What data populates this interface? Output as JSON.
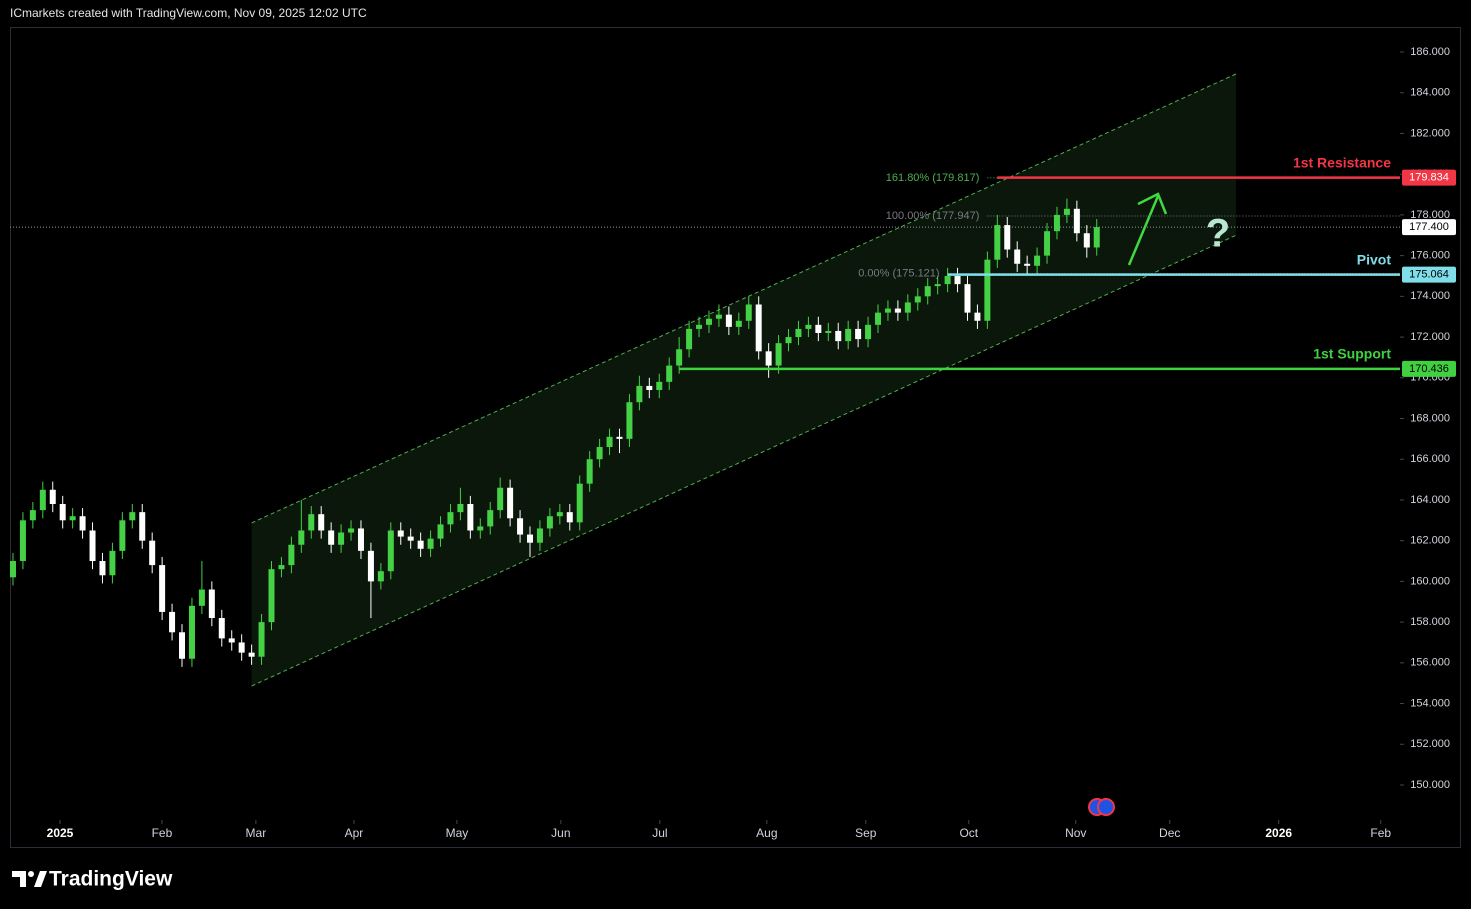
{
  "chart_data": {
    "type": "candlestick",
    "header": "ICmarkets created with TradingView.com, Nov 09, 2025 12:02 UTC",
    "brand": "TradingView",
    "ylim": [
      148.28,
      187.18
    ],
    "yticks": [
      {
        "value": 150,
        "label": "150.000"
      },
      {
        "value": 152,
        "label": "152.000"
      },
      {
        "value": 154,
        "label": "154.000"
      },
      {
        "value": 156,
        "label": "156.000"
      },
      {
        "value": 158,
        "label": "158.000"
      },
      {
        "value": 160,
        "label": "160.000"
      },
      {
        "value": 162,
        "label": "162.000"
      },
      {
        "value": 164,
        "label": "164.000"
      },
      {
        "value": 166,
        "label": "166.000"
      },
      {
        "value": 168,
        "label": "168.000"
      },
      {
        "value": 170,
        "label": "170.000"
      },
      {
        "value": 172,
        "label": "172.000"
      },
      {
        "value": 174,
        "label": "174.000"
      },
      {
        "value": 176,
        "label": "176.000"
      },
      {
        "value": 178,
        "label": "178.000"
      },
      {
        "value": 180,
        "label": "180.000"
      },
      {
        "value": 182,
        "label": "182.000"
      },
      {
        "value": 184,
        "label": "184.000"
      },
      {
        "value": 186,
        "label": "186.000"
      }
    ],
    "xlim": [
      -0.3,
      139.5
    ],
    "xticks": [
      {
        "value": 4.73,
        "label": "2025"
      },
      {
        "value": 14.98,
        "label": "Feb"
      },
      {
        "value": 24.43,
        "label": "Mar"
      },
      {
        "value": 34.29,
        "label": "Apr"
      },
      {
        "value": 44.65,
        "label": "May"
      },
      {
        "value": 55.1,
        "label": "Jun"
      },
      {
        "value": 65.06,
        "label": "Jul"
      },
      {
        "value": 75.82,
        "label": "Aug"
      },
      {
        "value": 85.77,
        "label": "Sep"
      },
      {
        "value": 96.13,
        "label": "Oct"
      },
      {
        "value": 106.89,
        "label": "Nov"
      },
      {
        "value": 116.34,
        "label": "Dec"
      },
      {
        "value": 127.3,
        "label": "2026"
      },
      {
        "value": 137.56,
        "label": "Feb"
      }
    ],
    "grid": false,
    "up_color": "#45d145",
    "down_color": "#ffffff",
    "candles": {
      "open": [
        160.2,
        161,
        163,
        163.5,
        164.5,
        163.8,
        163,
        163.2,
        162.5,
        161,
        160.3,
        161.5,
        163,
        163.4,
        162,
        160.8,
        158.5,
        157.5,
        156.2,
        158.8,
        159.6,
        158.2,
        157.2,
        157,
        156.5,
        156.3,
        158,
        160.6,
        160.8,
        161.8,
        162.5,
        163.3,
        162.5,
        161.8,
        162.4,
        162.6,
        161.5,
        160,
        160.5,
        162.5,
        162.2,
        162,
        161.6,
        162.1,
        162.8,
        163.4,
        163.8,
        162.5,
        162.7,
        163.5,
        164.6,
        163.1,
        162.3,
        161.9,
        162.6,
        163.2,
        163.4,
        162.9,
        164.8,
        166,
        166.6,
        167.1,
        167,
        168.8,
        169.6,
        169.4,
        169.8,
        170.6,
        171.4,
        172.4,
        172.6,
        172.9,
        173.1,
        172.5,
        172.8,
        173.6,
        171.3,
        170.6,
        171.7,
        172,
        172.4,
        172.6,
        172.2,
        172.3,
        171.8,
        172.4,
        171.9,
        172.6,
        173.2,
        173.4,
        173.2,
        173.7,
        174,
        174.5,
        174.6,
        175,
        174.6,
        173.2,
        172.8,
        175.8,
        177.5,
        176.3,
        175.6,
        175.5,
        176,
        177.2,
        178,
        178.3,
        177.1,
        176.4
      ],
      "high": [
        161.4,
        163.4,
        163.9,
        164.9,
        164.9,
        164.2,
        163.6,
        163.6,
        162.9,
        161.4,
        161.9,
        163.4,
        163.8,
        163.8,
        162.4,
        161.2,
        158.9,
        157.9,
        159.2,
        161,
        160,
        158.6,
        157.6,
        157.4,
        156.9,
        158.4,
        161,
        161.2,
        162.2,
        164,
        163.7,
        163.7,
        162.9,
        162.8,
        163,
        163,
        161.9,
        160.9,
        162.9,
        162.9,
        162.6,
        162.4,
        162.5,
        163.2,
        163.8,
        164.6,
        164.2,
        163.1,
        163.9,
        165.1,
        165,
        163.5,
        162.7,
        163,
        163.6,
        163.8,
        163.8,
        165.2,
        166.4,
        167,
        167.5,
        167.5,
        169.2,
        170.1,
        170,
        170.2,
        171,
        172,
        172.8,
        173,
        173.3,
        173.6,
        173.5,
        173.2,
        174,
        174,
        171.7,
        172.1,
        172.4,
        172.8,
        173,
        173,
        172.7,
        172.7,
        172.8,
        172.8,
        173,
        173.6,
        173.8,
        173.8,
        174.1,
        174.4,
        174.9,
        175,
        175.4,
        175.4,
        175,
        173.6,
        176.2,
        178,
        177.9,
        176.7,
        176,
        176.4,
        177.6,
        178.4,
        178.8,
        178.7,
        177.5,
        177.8
      ],
      "low": [
        159.8,
        160.6,
        162.6,
        163.1,
        163.4,
        162.6,
        162.6,
        162.1,
        160.6,
        159.9,
        159.9,
        161.1,
        162.6,
        161.6,
        160.4,
        158.1,
        157.1,
        155.8,
        155.8,
        158.4,
        157.8,
        156.8,
        156.6,
        156.1,
        155.9,
        155.9,
        157.6,
        160.2,
        160.4,
        161.4,
        162.1,
        162.1,
        161.4,
        161.4,
        162,
        161.1,
        158.2,
        159.6,
        160.1,
        161.8,
        161.6,
        161.2,
        161.2,
        161.7,
        162.4,
        163,
        162.1,
        162.1,
        162.3,
        163.1,
        162.7,
        161.9,
        161.2,
        161.5,
        162.2,
        162.8,
        162.5,
        162.5,
        164.4,
        165.6,
        166.2,
        166.3,
        166.6,
        168.4,
        169,
        169,
        169.4,
        170.2,
        171,
        172,
        172.2,
        172.5,
        172.1,
        172.1,
        172.4,
        170.9,
        170,
        170.2,
        171.3,
        171.6,
        172,
        171.8,
        171.8,
        171.4,
        171.4,
        171.5,
        171.5,
        172.2,
        172.8,
        172.8,
        172.8,
        173.3,
        173.6,
        174.1,
        174.2,
        174.2,
        172.8,
        172.4,
        172.4,
        175.4,
        175.9,
        175.2,
        175.1,
        175.1,
        175.6,
        176.8,
        177.6,
        176.7,
        175.9,
        176
      ],
      "close": [
        161,
        163,
        163.5,
        164.5,
        163.8,
        163,
        163.2,
        162.5,
        161,
        160.3,
        161.5,
        163,
        163.4,
        162,
        160.8,
        158.5,
        157.5,
        156.2,
        158.8,
        159.6,
        158.2,
        157.2,
        157,
        156.5,
        156.3,
        158,
        160.6,
        160.8,
        161.8,
        162.5,
        163.3,
        162.5,
        161.8,
        162.4,
        162.6,
        161.5,
        160,
        160.5,
        162.5,
        162.2,
        162,
        161.6,
        162.1,
        162.8,
        163.4,
        163.8,
        162.5,
        162.7,
        163.5,
        164.6,
        163.1,
        162.3,
        161.9,
        162.6,
        163.2,
        163.4,
        162.9,
        164.8,
        166,
        166.6,
        167.1,
        167,
        168.8,
        169.6,
        169.4,
        169.8,
        170.6,
        171.4,
        172.4,
        172.6,
        172.9,
        173.1,
        172.5,
        172.8,
        173.6,
        171.3,
        170.6,
        171.7,
        172,
        172.4,
        172.6,
        172.2,
        172.3,
        171.8,
        172.4,
        171.9,
        172.6,
        173.2,
        173.4,
        173.2,
        173.7,
        174,
        174.5,
        174.6,
        175,
        174.6,
        173.2,
        172.8,
        175.8,
        177.5,
        176.3,
        175.6,
        175.5,
        176,
        177.2,
        178,
        178.3,
        177.1,
        176.4,
        177.4
      ]
    },
    "channel": {
      "x": [
        24,
        123
      ],
      "upper": [
        162.87,
        184.92
      ],
      "lower": [
        154.86,
        177.0
      ],
      "color": "#4caf50"
    },
    "levels": [
      {
        "name": "1st Resistance",
        "value": 179.834,
        "from": 99,
        "color": "#f23645"
      },
      {
        "name": "Pivot",
        "value": 175.064,
        "from": 94,
        "color": "#80deea"
      },
      {
        "name": "1st Support",
        "value": 170.436,
        "from": 67,
        "color": "#3fd13f"
      }
    ],
    "fib": [
      {
        "label": "161.80% (179.817)",
        "value": 179.817,
        "from": 98,
        "color": "#4caf50"
      },
      {
        "label": "100.00% (177.947)",
        "value": 177.947,
        "from": 98,
        "color": "#787b86"
      },
      {
        "label": "0.00% (175.121)",
        "value": 175.121,
        "from": 94,
        "color": "#787b86"
      }
    ],
    "last_price": {
      "value": 177.4,
      "label": "177.400"
    },
    "annotation": "?"
  }
}
